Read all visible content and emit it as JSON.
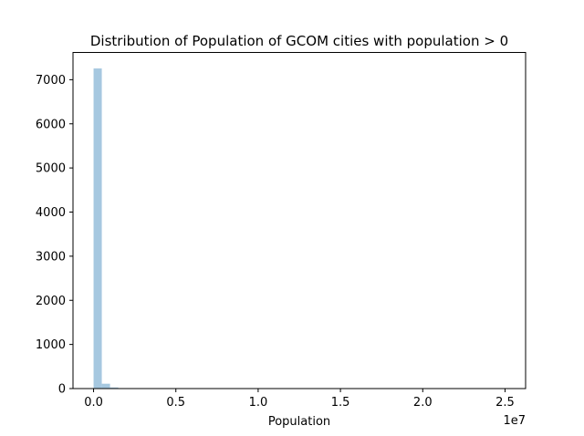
{
  "chart_data": {
    "type": "bar",
    "title": "Distribution of Population of GCOM cities with population > 0",
    "xlabel": "Population",
    "ylabel": "",
    "x_offset_label": "1e7",
    "xlim": [
      -1250000,
      26250000
    ],
    "ylim": [
      0,
      7617.6
    ],
    "x_ticks": [
      {
        "value": 0,
        "label": "0.0"
      },
      {
        "value": 5000000,
        "label": "0.5"
      },
      {
        "value": 10000000,
        "label": "1.0"
      },
      {
        "value": 15000000,
        "label": "1.5"
      },
      {
        "value": 20000000,
        "label": "2.0"
      },
      {
        "value": 25000000,
        "label": "2.5"
      }
    ],
    "y_ticks": [
      {
        "value": 0,
        "label": "0"
      },
      {
        "value": 1000,
        "label": "1000"
      },
      {
        "value": 2000,
        "label": "2000"
      },
      {
        "value": 3000,
        "label": "3000"
      },
      {
        "value": 4000,
        "label": "4000"
      },
      {
        "value": 5000,
        "label": "5000"
      },
      {
        "value": 6000,
        "label": "6000"
      },
      {
        "value": 7000,
        "label": "7000"
      }
    ],
    "bins": [
      {
        "x0": 0,
        "x1": 500000,
        "count": 7255
      },
      {
        "x0": 500000,
        "x1": 1000000,
        "count": 110
      },
      {
        "x0": 1000000,
        "x1": 1500000,
        "count": 25
      },
      {
        "x0": 1500000,
        "x1": 2000000,
        "count": 9
      },
      {
        "x0": 2000000,
        "x1": 2500000,
        "count": 5
      },
      {
        "x0": 2500000,
        "x1": 3000000,
        "count": 3
      },
      {
        "x0": 3000000,
        "x1": 3500000,
        "count": 2
      },
      {
        "x0": 3500000,
        "x1": 4000000,
        "count": 2
      },
      {
        "x0": 4000000,
        "x1": 4500000,
        "count": 1
      },
      {
        "x0": 4500000,
        "x1": 5000000,
        "count": 1
      },
      {
        "x0": 8000000,
        "x1": 8500000,
        "count": 1
      },
      {
        "x0": 24500000,
        "x1": 25000000,
        "count": 1
      }
    ],
    "bar_color": "#a6c8e0",
    "grid": false,
    "legend": "none"
  }
}
